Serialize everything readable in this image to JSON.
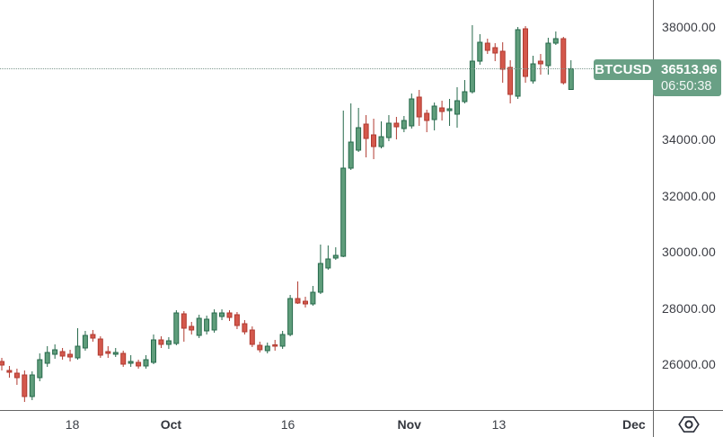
{
  "chart_data": {
    "type": "candlestick",
    "symbol": "BTCUSD",
    "last_price": "36513.96",
    "countdown": "06:50:38",
    "grid": "off",
    "legend": "none",
    "y_axis": {
      "side": "right",
      "tick_labels": [
        "38000.00",
        "36000.00",
        "34000.00",
        "32000.00",
        "30000.00",
        "28000.00",
        "26000.00"
      ],
      "visible_price_top": 38960,
      "visible_price_bottom": 24368
    },
    "x_axis": {
      "ticks": [
        {
          "label": "18",
          "i": 9.3,
          "bold": false
        },
        {
          "label": "Oct",
          "i": 22.3,
          "bold": true
        },
        {
          "label": "16",
          "i": 37.7,
          "bold": false
        },
        {
          "label": "Nov",
          "i": 53.7,
          "bold": true
        },
        {
          "label": "13",
          "i": 65.5,
          "bold": false
        },
        {
          "label": "Dec",
          "i": 83.3,
          "bold": true
        }
      ]
    },
    "colors": {
      "up": "#5f9d7b",
      "up_border": "#26694b",
      "down": "#d4584c",
      "down_border": "#b03a30",
      "badge_bg": "#69a085",
      "price_line": "#7f9a90",
      "axis_line": "#666666",
      "axis_text": "#3b3d44"
    },
    "candles_format": [
      "open",
      "high",
      "low",
      "close"
    ],
    "candles": [
      [
        26096,
        26224,
        25776,
        25968
      ],
      [
        25776,
        25936,
        25520,
        25712
      ],
      [
        25680,
        25840,
        25264,
        25520
      ],
      [
        25616,
        25776,
        24656,
        24848
      ],
      [
        24848,
        25744,
        24720,
        25616
      ],
      [
        25520,
        26384,
        25392,
        26160
      ],
      [
        26032,
        26640,
        25904,
        26416
      ],
      [
        26352,
        26704,
        26192,
        26512
      ],
      [
        26448,
        26576,
        26160,
        26288
      ],
      [
        26352,
        26512,
        26096,
        26256
      ],
      [
        26224,
        27280,
        26160,
        26640
      ],
      [
        26576,
        27184,
        26480,
        27024
      ],
      [
        27056,
        27216,
        26800,
        26928
      ],
      [
        26896,
        26992,
        26224,
        26320
      ],
      [
        26448,
        26640,
        26224,
        26384
      ],
      [
        26352,
        26576,
        26256,
        26416
      ],
      [
        26384,
        26480,
        25904,
        26000
      ],
      [
        26032,
        26320,
        25904,
        26096
      ],
      [
        26064,
        26160,
        25840,
        25936
      ],
      [
        25936,
        26320,
        25840,
        26160
      ],
      [
        26064,
        27056,
        26000,
        26864
      ],
      [
        26864,
        26992,
        26576,
        26704
      ],
      [
        26704,
        26960,
        26544,
        26832
      ],
      [
        26736,
        27920,
        26672,
        27824
      ],
      [
        27792,
        27888,
        26800,
        27280
      ],
      [
        27344,
        27504,
        27056,
        27216
      ],
      [
        27024,
        27760,
        26928,
        27632
      ],
      [
        27184,
        27728,
        27056,
        27600
      ],
      [
        27216,
        27952,
        27120,
        27824
      ],
      [
        27696,
        27952,
        27568,
        27824
      ],
      [
        27824,
        27920,
        27536,
        27664
      ],
      [
        27760,
        27856,
        27248,
        27376
      ],
      [
        27440,
        27568,
        27056,
        27152
      ],
      [
        27216,
        27344,
        26608,
        26704
      ],
      [
        26672,
        26800,
        26416,
        26512
      ],
      [
        26480,
        26768,
        26384,
        26640
      ],
      [
        26688,
        26864,
        26480,
        26640
      ],
      [
        26640,
        27184,
        26544,
        27056
      ],
      [
        27056,
        28464,
        26992,
        28336
      ],
      [
        28336,
        28944,
        28144,
        28176
      ],
      [
        28240,
        28400,
        28016,
        28144
      ],
      [
        28144,
        28784,
        28080,
        28560
      ],
      [
        28560,
        30256,
        28496,
        29584
      ],
      [
        29424,
        30224,
        29360,
        29744
      ],
      [
        29776,
        30160,
        29712,
        29872
      ],
      [
        29840,
        35024,
        29808,
        32976
      ],
      [
        32976,
        35280,
        32912,
        33904
      ],
      [
        33616,
        35120,
        33552,
        34416
      ],
      [
        34544,
        34864,
        33360,
        34032
      ],
      [
        34160,
        34736,
        33296,
        33744
      ],
      [
        33744,
        34640,
        33680,
        34096
      ],
      [
        34064,
        34864,
        33936,
        34576
      ],
      [
        34576,
        34800,
        34000,
        34448
      ],
      [
        34384,
        34832,
        34256,
        34672
      ],
      [
        34480,
        35632,
        34384,
        35440
      ],
      [
        35504,
        35760,
        34480,
        34800
      ],
      [
        34928,
        35056,
        34256,
        34672
      ],
      [
        34704,
        35312,
        34320,
        35184
      ],
      [
        35120,
        35376,
        34672,
        34992
      ],
      [
        35024,
        35440,
        34480,
        35088
      ],
      [
        34896,
        35856,
        34416,
        35376
      ],
      [
        35344,
        36112,
        35280,
        35696
      ],
      [
        35696,
        38064,
        35632,
        36784
      ],
      [
        36784,
        37744,
        36656,
        37456
      ],
      [
        37424,
        37584,
        37040,
        37168
      ],
      [
        37264,
        37424,
        36784,
        37072
      ],
      [
        37136,
        37456,
        36016,
        36496
      ],
      [
        36560,
        36816,
        35280,
        35600
      ],
      [
        35536,
        38000,
        35440,
        37904
      ],
      [
        37936,
        38032,
        36016,
        36240
      ],
      [
        36080,
        36976,
        35984,
        36688
      ],
      [
        36784,
        37040,
        36304,
        36688
      ],
      [
        36624,
        37616,
        36304,
        37424
      ],
      [
        37424,
        37840,
        37360,
        37584
      ],
      [
        37584,
        37648,
        35952,
        36016
      ],
      [
        35776,
        36816,
        35760,
        36513.96
      ]
    ]
  },
  "icons": {
    "corner_icon": "hexagon-with-circle"
  }
}
